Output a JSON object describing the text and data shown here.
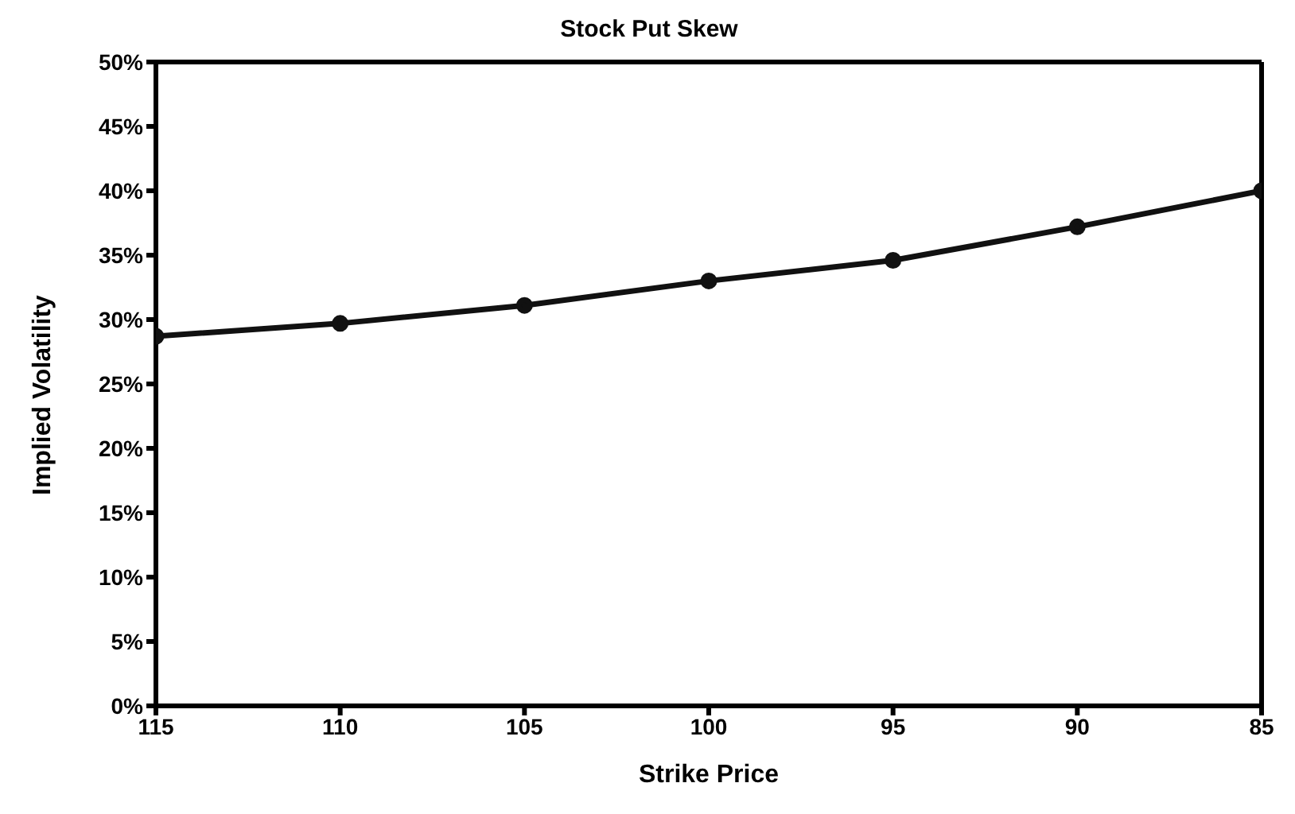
{
  "chart_data": {
    "type": "line",
    "title": "Stock Put Skew",
    "xlabel": "Strike Price",
    "ylabel": "Implied Volatility",
    "x": [
      115,
      110,
      105,
      100,
      95,
      90,
      85
    ],
    "series": [
      {
        "color": "#111111",
        "values": [
          28.7,
          29.7,
          31.1,
          33.0,
          34.6,
          37.2,
          40.0
        ]
      }
    ],
    "xlim": [
      115,
      85
    ],
    "xticks": [
      115,
      110,
      105,
      100,
      95,
      90,
      85
    ],
    "ylim": [
      0,
      50
    ],
    "yticks": [
      {
        "value": 0,
        "label": "0%"
      },
      {
        "value": 5,
        "label": "5%"
      },
      {
        "value": 10,
        "label": "10%"
      },
      {
        "value": 15,
        "label": "15%"
      },
      {
        "value": 20,
        "label": "20%"
      },
      {
        "value": 25,
        "label": "25%"
      },
      {
        "value": 30,
        "label": "30%"
      },
      {
        "value": 35,
        "label": "35%"
      },
      {
        "value": 40,
        "label": "40%"
      },
      {
        "value": 45,
        "label": "45%"
      },
      {
        "value": 50,
        "label": "50%"
      }
    ],
    "marker": "circle",
    "line_style": "solid",
    "legend": false
  }
}
